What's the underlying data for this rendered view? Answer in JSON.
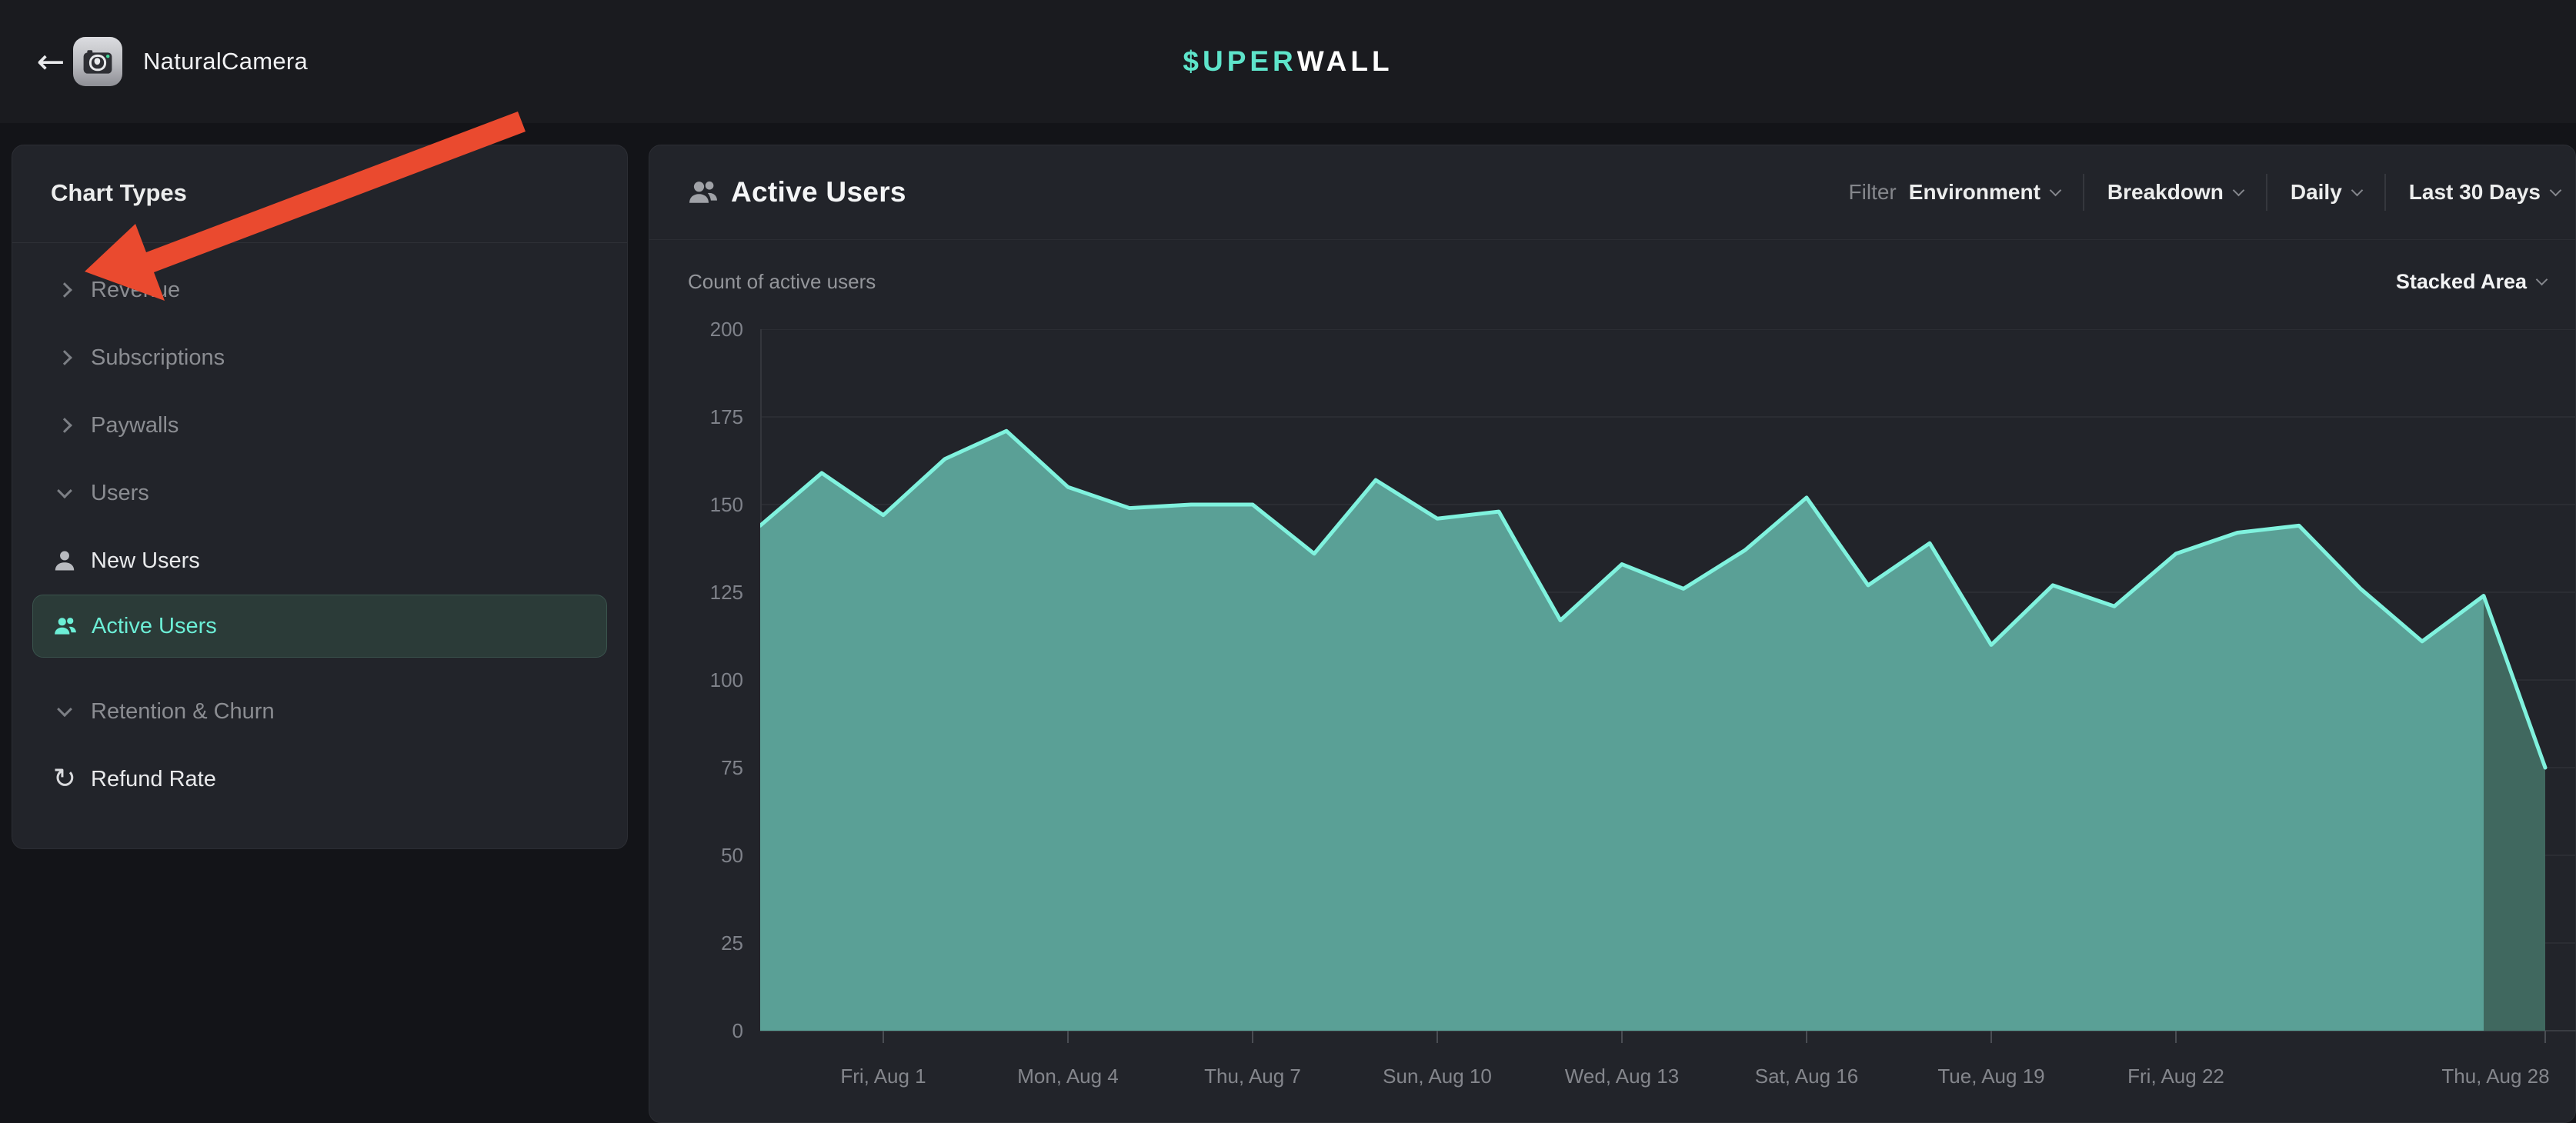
{
  "topbar": {
    "back_glyph": "←",
    "app_name": "NaturalCamera",
    "logo": {
      "accent": "$UPER",
      "rest": "WALL"
    }
  },
  "sidebar": {
    "title": "Chart Types",
    "items": [
      {
        "label": "Revenue",
        "kind": "group",
        "state": "collapsed",
        "icon": "chevron-right-icon"
      },
      {
        "label": "Subscriptions",
        "kind": "group",
        "state": "collapsed",
        "icon": "chevron-right-icon"
      },
      {
        "label": "Paywalls",
        "kind": "group",
        "state": "collapsed",
        "icon": "chevron-right-icon"
      },
      {
        "label": "Users",
        "kind": "group",
        "state": "expanded",
        "icon": "chevron-down-icon"
      },
      {
        "label": "New Users",
        "kind": "leaf",
        "icon": "user-icon",
        "selected": false
      },
      {
        "label": "Active Users",
        "kind": "leaf",
        "icon": "users-icon",
        "selected": true
      },
      {
        "label": "Retention & Churn",
        "kind": "group",
        "state": "expanded",
        "icon": "chevron-down-icon",
        "spaced": true
      },
      {
        "label": "Refund Rate",
        "kind": "leaf",
        "icon": "refresh-icon",
        "selected": false
      }
    ]
  },
  "chart_panel": {
    "title": "Active Users",
    "title_icon": "users-icon",
    "filter_label": "Filter",
    "controls": [
      {
        "label": "Environment"
      },
      {
        "label": "Breakdown"
      },
      {
        "label": "Daily"
      },
      {
        "label": "Last 30 Days"
      }
    ],
    "subtitle": "Count of active users",
    "chart_type_selector": "Stacked Area"
  },
  "colors": {
    "accent": "#5ee4ca",
    "line": "#80f2de",
    "area": "#5aa096",
    "area_partial": "#40685f",
    "grid": "#2b2d33",
    "baseline": "#3a3d43",
    "axis": "#34363c",
    "tick": "#4a4d53",
    "annotation_red": "#ea4a2f",
    "selected_item_bg": "#2b3b38",
    "selected_item_text": "#6ceed6"
  },
  "chart_data": {
    "type": "area",
    "title": "Active Users",
    "subtitle": "Count of active users",
    "mode": "Stacked Area",
    "range": "Last 30 Days",
    "granularity": "Daily",
    "x": [
      "Jul 30",
      "Jul 31",
      "Aug 1",
      "Aug 2",
      "Aug 3",
      "Aug 4",
      "Aug 5",
      "Aug 6",
      "Aug 7",
      "Aug 8",
      "Aug 9",
      "Aug 10",
      "Aug 11",
      "Aug 12",
      "Aug 13",
      "Aug 14",
      "Aug 15",
      "Aug 16",
      "Aug 17",
      "Aug 18",
      "Aug 19",
      "Aug 20",
      "Aug 21",
      "Aug 22",
      "Aug 23",
      "Aug 24",
      "Aug 25",
      "Aug 26",
      "Aug 27",
      "Aug 28"
    ],
    "values": [
      144,
      159,
      147,
      163,
      171,
      155,
      149,
      150,
      150,
      136,
      157,
      146,
      148,
      117,
      133,
      126,
      137,
      152,
      127,
      139,
      110,
      127,
      121,
      136,
      142,
      144,
      126,
      111,
      124,
      75
    ],
    "ylim": [
      0,
      200
    ],
    "yticks": [
      0,
      25,
      50,
      75,
      100,
      125,
      150,
      175,
      200
    ],
    "x_tick_labels": [
      "Fri, Aug 1",
      "Mon, Aug 4",
      "Thu, Aug 7",
      "Sun, Aug 10",
      "Wed, Aug 13",
      "Sat, Aug 16",
      "Tue, Aug 19",
      "Fri, Aug 22",
      "Thu, Aug 28"
    ],
    "x_tick_indices": [
      2,
      5,
      8,
      11,
      14,
      17,
      20,
      23,
      29
    ],
    "grid": true,
    "legend": false,
    "partial_segment_start_index": 28
  }
}
